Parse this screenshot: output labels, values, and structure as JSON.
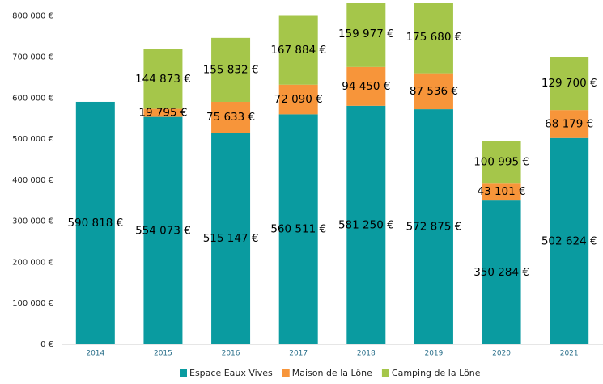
{
  "chart_data": {
    "type": "bar",
    "stacked": true,
    "categories": [
      "2014",
      "2015",
      "2016",
      "2017",
      "2018",
      "2019",
      "2020",
      "2021"
    ],
    "series": [
      {
        "name": "Espace Eaux Vives",
        "color": "#0a9ba0",
        "values": [
          590818,
          554073,
          515147,
          560511,
          581250,
          572875,
          350284,
          502624
        ],
        "value_labels": [
          "590 818 €",
          "554 073 €",
          "515 147 €",
          "560 511 €",
          "581 250 €",
          "572 875 €",
          "350 284 €",
          "502 624 €"
        ]
      },
      {
        "name": "Maison de la Lône",
        "color": "#f7953a",
        "values": [
          null,
          19795,
          75633,
          72090,
          94450,
          87536,
          43101,
          68179
        ],
        "value_labels": [
          null,
          "19 795 €",
          "75 633 €",
          "72 090 €",
          "94 450 €",
          "87 536 €",
          "43 101 €",
          "68 179 €"
        ]
      },
      {
        "name": "Camping de la Lône",
        "color": "#a5c64a",
        "values": [
          null,
          144873,
          155832,
          167884,
          159977,
          175680,
          100995,
          129700
        ],
        "value_labels": [
          null,
          "144 873 €",
          "155 832 €",
          "167 884 €",
          "159 977 €",
          "175 680 €",
          "100 995 €",
          "129 700 €"
        ]
      }
    ],
    "ylim": [
      0,
      831000
    ],
    "yticks": [
      {
        "value": 0,
        "label": "0 €"
      },
      {
        "value": 100000,
        "label": "100 000 €"
      },
      {
        "value": 200000,
        "label": "200 000 €"
      },
      {
        "value": 300000,
        "label": "300 000 €"
      },
      {
        "value": 400000,
        "label": "400 000 €"
      },
      {
        "value": 500000,
        "label": "500 000 €"
      },
      {
        "value": 600000,
        "label": "600 000 €"
      },
      {
        "value": 700000,
        "label": "700 000 €"
      },
      {
        "value": 800000,
        "label": "800 000 €"
      }
    ],
    "legend": "bottom"
  }
}
